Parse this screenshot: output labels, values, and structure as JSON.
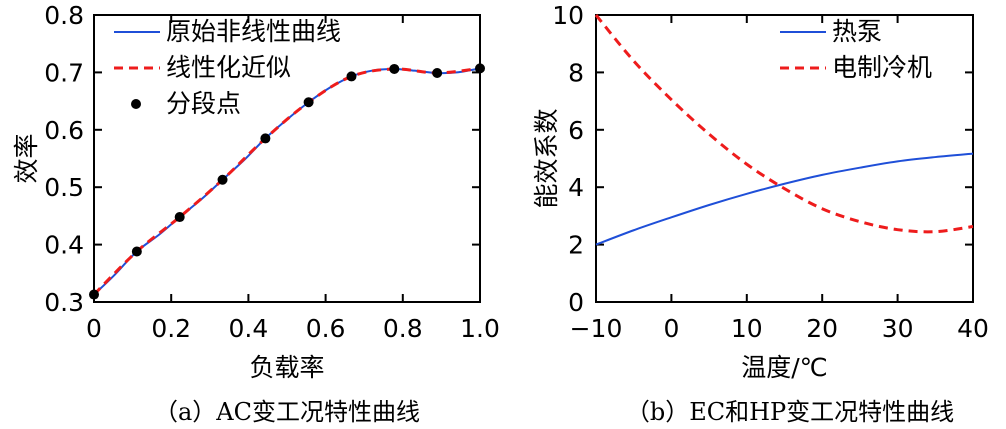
{
  "chart_data": [
    {
      "type": "line",
      "caption": "（a）AC变工况特性曲线",
      "xlabel": "负载率",
      "ylabel": "效率",
      "xlim": [
        0,
        1.0
      ],
      "ylim": [
        0.3,
        0.8
      ],
      "x_ticks": [
        "0",
        "0.2",
        "0.4",
        "0.6",
        "0.8",
        "1.0"
      ],
      "y_ticks": [
        "0.3",
        "0.4",
        "0.5",
        "0.6",
        "0.7",
        "0.8"
      ],
      "legend_position": "top-left",
      "series": [
        {
          "name": "原始非线性曲线",
          "style": "solid",
          "color": "#1f4fd8",
          "x": [
            0,
            0.05,
            0.111,
            0.17,
            0.222,
            0.28,
            0.333,
            0.39,
            0.444,
            0.5,
            0.556,
            0.61,
            0.667,
            0.72,
            0.778,
            0.83,
            0.889,
            0.94,
            1.0
          ],
          "y": [
            0.313,
            0.345,
            0.388,
            0.418,
            0.448,
            0.48,
            0.513,
            0.548,
            0.585,
            0.618,
            0.648,
            0.673,
            0.693,
            0.703,
            0.706,
            0.703,
            0.699,
            0.7,
            0.707
          ]
        },
        {
          "name": "线性化近似",
          "style": "dashed",
          "color": "#ee1c1c",
          "x": [
            0,
            0.111,
            0.222,
            0.333,
            0.444,
            0.556,
            0.667,
            0.778,
            0.889,
            1.0
          ],
          "y": [
            0.313,
            0.388,
            0.448,
            0.513,
            0.585,
            0.648,
            0.693,
            0.706,
            0.699,
            0.707
          ]
        },
        {
          "name": "分段点",
          "style": "markers",
          "color": "#000000",
          "x": [
            0,
            0.111,
            0.222,
            0.333,
            0.444,
            0.556,
            0.667,
            0.778,
            0.889,
            1.0
          ],
          "y": [
            0.313,
            0.388,
            0.448,
            0.513,
            0.585,
            0.648,
            0.693,
            0.706,
            0.699,
            0.707
          ]
        }
      ]
    },
    {
      "type": "line",
      "caption": "（b）EC和HP变工况特性曲线",
      "xlabel": "温度/℃",
      "ylabel": "能效系数",
      "xlim": [
        -10,
        40
      ],
      "ylim": [
        0,
        10
      ],
      "x_ticks": [
        "−10",
        "0",
        "10",
        "20",
        "30",
        "40"
      ],
      "y_ticks": [
        "0",
        "2",
        "4",
        "6",
        "8",
        "10"
      ],
      "legend_position": "top-right",
      "series": [
        {
          "name": "热泵",
          "style": "solid",
          "color": "#1f4fd8",
          "x": [
            -10,
            -5,
            0,
            5,
            10,
            15,
            20,
            25,
            30,
            35,
            40
          ],
          "y": [
            2.0,
            2.5,
            2.95,
            3.38,
            3.77,
            4.12,
            4.43,
            4.68,
            4.9,
            5.05,
            5.17
          ]
        },
        {
          "name": "电制冷机",
          "style": "dashed",
          "color": "#ee1c1c",
          "x": [
            -10,
            -5,
            0,
            5,
            10,
            15,
            20,
            25,
            30,
            35,
            40
          ],
          "y": [
            10.0,
            8.4,
            7.05,
            5.85,
            4.8,
            3.95,
            3.25,
            2.8,
            2.52,
            2.45,
            2.63
          ]
        }
      ]
    }
  ]
}
